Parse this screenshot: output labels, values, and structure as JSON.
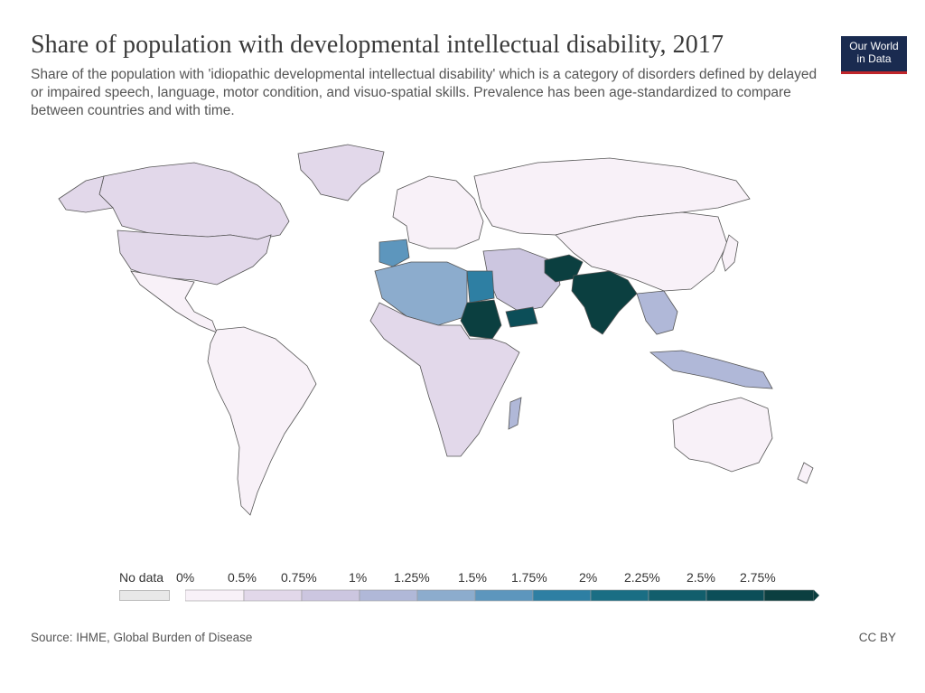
{
  "title": "Share of population with developmental intellectual disability, 2017",
  "subtitle": "Share of the population with 'idiopathic developmental intellectual disability' which is a category of disorders defined by delayed or impaired speech, language, motor condition, and visuo-spatial skills. Prevalence has been age-standardized to compare between countries and with time.",
  "logo": {
    "line1": "Our World",
    "line2": "in Data",
    "bg": "#1a2b50",
    "accent": "#c0262b"
  },
  "legend": {
    "no_data_label": "No data",
    "no_data_color": "#e8e8e8",
    "bin_labels": [
      "0%",
      "0.5%",
      "0.75%",
      "1%",
      "1.25%",
      "1.5%",
      "1.75%",
      "2%",
      "2.25%",
      "2.5%",
      "2.75%"
    ],
    "bin_colors": [
      "#f8f1f8",
      "#e2d8ea",
      "#ccc6e0",
      "#b0b8d8",
      "#8caccd",
      "#5d96bd",
      "#2e7fa3",
      "#1a6e84",
      "#125e6c",
      "#0c4e58",
      "#0b3f40"
    ]
  },
  "source": "Source: IHME, Global Burden of Disease",
  "license": "CC BY"
}
